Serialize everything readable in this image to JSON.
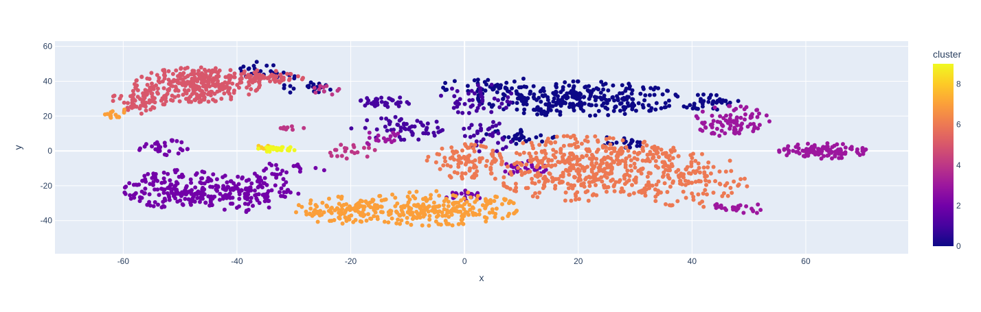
{
  "chart_data": {
    "type": "scatter",
    "xlabel": "x",
    "ylabel": "y",
    "xlim": [
      -72,
      78
    ],
    "ylim": [
      -59,
      63
    ],
    "x_ticks": [
      -60,
      -40,
      -20,
      0,
      20,
      40,
      60
    ],
    "y_ticks": [
      -40,
      -20,
      0,
      20,
      40,
      60
    ],
    "grid": true,
    "plot_background": "#e5ecf6",
    "colorbar": {
      "title": "cluster",
      "range": [
        0,
        9
      ],
      "ticks": [
        0,
        2,
        4,
        6,
        8
      ],
      "colorscale": [
        "#0d0887",
        "#46039f",
        "#7201a8",
        "#9c179e",
        "#bd3786",
        "#d8576b",
        "#ed7953",
        "#fb9f3a",
        "#fdca26",
        "#f0f921"
      ]
    },
    "clusters": [
      {
        "value": 0,
        "color": "#0d0887",
        "regions": [
          {
            "cx": 20,
            "cy": 30,
            "rx": 16,
            "ry": 9,
            "n": 300
          },
          {
            "cx": 5,
            "cy": 37,
            "rx": 8,
            "ry": 6,
            "n": 40
          },
          {
            "cx": 43,
            "cy": 28,
            "rx": 5,
            "ry": 4,
            "n": 40
          },
          {
            "cx": -34,
            "cy": 46,
            "rx": 6,
            "ry": 5,
            "n": 30
          },
          {
            "cx": -27,
            "cy": 36,
            "rx": 5,
            "ry": 3,
            "n": 20
          },
          {
            "cx": 10,
            "cy": 8,
            "rx": 6,
            "ry": 4,
            "n": 30
          },
          {
            "cx": 28,
            "cy": 5,
            "rx": 5,
            "ry": 3,
            "n": 20
          }
        ]
      },
      {
        "value": 1,
        "color": "#46039f",
        "regions": [
          {
            "cx": -14,
            "cy": 28,
            "rx": 4,
            "ry": 3,
            "n": 35
          },
          {
            "cx": -10,
            "cy": 13,
            "rx": 9,
            "ry": 6,
            "n": 55
          },
          {
            "cx": 2,
            "cy": 30,
            "rx": 6,
            "ry": 8,
            "n": 45
          },
          {
            "cx": 4,
            "cy": 8,
            "rx": 4,
            "ry": 8,
            "n": 35
          }
        ]
      },
      {
        "value": 2,
        "color": "#7201a8",
        "regions": [
          {
            "cx": -50,
            "cy": -22,
            "rx": 9,
            "ry": 10,
            "n": 190
          },
          {
            "cx": -38,
            "cy": -24,
            "rx": 8,
            "ry": 10,
            "n": 130
          },
          {
            "cx": -53,
            "cy": 2,
            "rx": 4,
            "ry": 4,
            "n": 30
          },
          {
            "cx": 10,
            "cy": -10,
            "rx": 4,
            "ry": 4,
            "n": 30
          },
          {
            "cx": 0,
            "cy": -26,
            "rx": 4,
            "ry": 3,
            "n": 20
          },
          {
            "cx": -30,
            "cy": -10,
            "rx": 5,
            "ry": 4,
            "n": 20
          }
        ]
      },
      {
        "value": 3,
        "color": "#9c179e",
        "regions": [
          {
            "cx": 63,
            "cy": 0,
            "rx": 7,
            "ry": 4,
            "n": 110
          },
          {
            "cx": 47,
            "cy": 17,
            "rx": 6,
            "ry": 8,
            "n": 90
          },
          {
            "cx": 48,
            "cy": -33,
            "rx": 5,
            "ry": 3,
            "n": 25
          },
          {
            "cx": -14,
            "cy": 7,
            "rx": 4,
            "ry": 4,
            "n": 20
          }
        ]
      },
      {
        "value": 4,
        "color": "#bd3786",
        "regions": [
          {
            "cx": -20,
            "cy": 0,
            "rx": 4,
            "ry": 4,
            "n": 20
          },
          {
            "cx": -25,
            "cy": 34,
            "rx": 3,
            "ry": 3,
            "n": 10
          },
          {
            "cx": -31,
            "cy": 13,
            "rx": 3,
            "ry": 1,
            "n": 10
          }
        ]
      },
      {
        "value": 5,
        "color": "#d8576b",
        "regions": [
          {
            "cx": -47,
            "cy": 38,
            "rx": 10,
            "ry": 9,
            "n": 300
          },
          {
            "cx": -57,
            "cy": 28,
            "rx": 5,
            "ry": 6,
            "n": 60
          },
          {
            "cx": -35,
            "cy": 42,
            "rx": 6,
            "ry": 4,
            "n": 60
          }
        ]
      },
      {
        "value": 6,
        "color": "#ed7953",
        "regions": [
          {
            "cx": 20,
            "cy": -10,
            "rx": 14,
            "ry": 17,
            "n": 420
          },
          {
            "cx": 40,
            "cy": -17,
            "rx": 9,
            "ry": 14,
            "n": 140
          },
          {
            "cx": 0,
            "cy": -6,
            "rx": 6,
            "ry": 9,
            "n": 90
          },
          {
            "cx": 33,
            "cy": 0,
            "rx": 5,
            "ry": 5,
            "n": 40
          }
        ]
      },
      {
        "value": 7,
        "color": "#fb9f3a",
        "regions": [
          {
            "cx": -5,
            "cy": -33,
            "rx": 13,
            "ry": 9,
            "n": 260
          },
          {
            "cx": -22,
            "cy": -34,
            "rx": 7,
            "ry": 7,
            "n": 100
          },
          {
            "cx": -61,
            "cy": 21,
            "rx": 2,
            "ry": 3,
            "n": 15
          }
        ]
      },
      {
        "value": 8,
        "color": "#fdca26",
        "regions": [
          {
            "cx": -35,
            "cy": 2,
            "rx": 2,
            "ry": 1,
            "n": 10
          }
        ]
      },
      {
        "value": 9,
        "color": "#f0f921",
        "regions": [
          {
            "cx": -33,
            "cy": 1,
            "rx": 3,
            "ry": 1.5,
            "n": 30
          }
        ]
      }
    ]
  }
}
